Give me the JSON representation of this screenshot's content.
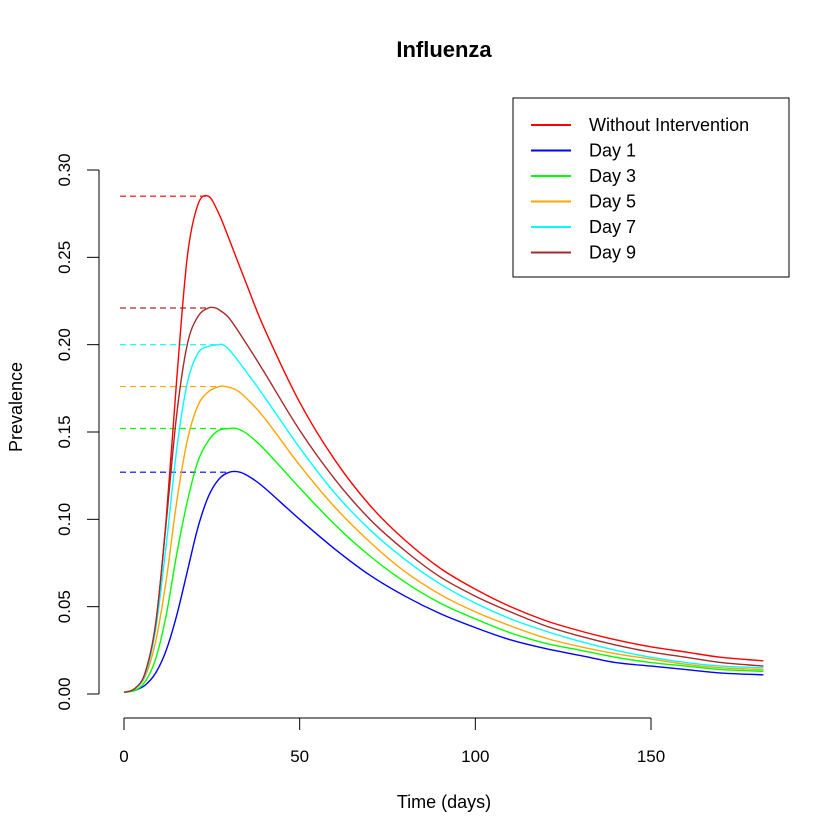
{
  "chart_data": {
    "type": "line",
    "title": "Influenza",
    "xlabel": "Time (days)",
    "ylabel": "Prevalence",
    "xlim": [
      0,
      182
    ],
    "ylim": [
      0,
      0.3
    ],
    "xticks": [
      0,
      50,
      100,
      150
    ],
    "yticks": [
      0.0,
      0.05,
      0.1,
      0.15,
      0.2,
      0.25,
      0.3
    ],
    "xtick_labels": [
      "0",
      "50",
      "100",
      "150"
    ],
    "ytick_labels": [
      "0.00",
      "0.05",
      "0.10",
      "0.15",
      "0.20",
      "0.25",
      "0.30"
    ],
    "grid": false,
    "legend_position": "top-right",
    "series": [
      {
        "name": "Without Intervention",
        "color": "#ff0000",
        "peak_value": 0.285,
        "x": [
          0,
          3,
          6,
          9,
          12,
          15,
          18,
          21,
          24,
          27,
          30,
          35,
          40,
          50,
          60,
          70,
          80,
          90,
          100,
          110,
          120,
          130,
          140,
          150,
          160,
          170,
          182
        ],
        "y": [
          0.001,
          0.003,
          0.012,
          0.04,
          0.1,
          0.18,
          0.25,
          0.28,
          0.285,
          0.275,
          0.26,
          0.234,
          0.209,
          0.167,
          0.134,
          0.108,
          0.088,
          0.072,
          0.06,
          0.05,
          0.042,
          0.036,
          0.031,
          0.027,
          0.024,
          0.021,
          0.019
        ]
      },
      {
        "name": "Day 1",
        "color": "#0000ff",
        "peak_value": 0.127,
        "x": [
          0,
          3,
          6,
          9,
          12,
          15,
          18,
          21,
          24,
          27,
          30,
          33,
          36,
          40,
          50,
          60,
          70,
          80,
          90,
          100,
          110,
          120,
          130,
          140,
          150,
          160,
          170,
          182
        ],
        "y": [
          0.001,
          0.002,
          0.005,
          0.012,
          0.025,
          0.045,
          0.07,
          0.095,
          0.113,
          0.123,
          0.127,
          0.127,
          0.124,
          0.118,
          0.1,
          0.083,
          0.068,
          0.056,
          0.046,
          0.038,
          0.031,
          0.026,
          0.022,
          0.018,
          0.016,
          0.014,
          0.012,
          0.011
        ]
      },
      {
        "name": "Day 3",
        "color": "#00ff00",
        "peak_value": 0.152,
        "x": [
          0,
          3,
          6,
          9,
          12,
          15,
          18,
          21,
          24,
          27,
          30,
          32,
          35,
          40,
          50,
          60,
          70,
          80,
          90,
          100,
          110,
          120,
          130,
          140,
          150,
          160,
          170,
          182
        ],
        "y": [
          0.001,
          0.002,
          0.007,
          0.02,
          0.045,
          0.08,
          0.11,
          0.133,
          0.145,
          0.151,
          0.152,
          0.152,
          0.149,
          0.14,
          0.118,
          0.097,
          0.079,
          0.064,
          0.052,
          0.043,
          0.035,
          0.029,
          0.025,
          0.021,
          0.018,
          0.016,
          0.014,
          0.013
        ]
      },
      {
        "name": "Day 5",
        "color": "#ffa500",
        "peak_value": 0.176,
        "x": [
          0,
          3,
          6,
          9,
          12,
          15,
          18,
          21,
          24,
          27,
          29,
          32,
          35,
          40,
          50,
          60,
          70,
          80,
          90,
          100,
          110,
          120,
          130,
          140,
          150,
          160,
          170,
          182
        ],
        "y": [
          0.001,
          0.003,
          0.01,
          0.03,
          0.065,
          0.11,
          0.145,
          0.165,
          0.173,
          0.176,
          0.176,
          0.174,
          0.169,
          0.158,
          0.131,
          0.107,
          0.087,
          0.07,
          0.057,
          0.047,
          0.039,
          0.032,
          0.027,
          0.023,
          0.02,
          0.017,
          0.015,
          0.014
        ]
      },
      {
        "name": "Day 7",
        "color": "#00ffff",
        "peak_value": 0.2,
        "x": [
          0,
          3,
          6,
          9,
          12,
          15,
          18,
          21,
          24,
          27,
          28,
          30,
          35,
          40,
          50,
          60,
          70,
          80,
          90,
          100,
          110,
          120,
          130,
          140,
          150,
          160,
          170,
          182
        ],
        "y": [
          0.001,
          0.003,
          0.011,
          0.037,
          0.085,
          0.14,
          0.178,
          0.195,
          0.199,
          0.2,
          0.2,
          0.197,
          0.184,
          0.17,
          0.141,
          0.115,
          0.094,
          0.077,
          0.063,
          0.052,
          0.043,
          0.036,
          0.03,
          0.025,
          0.021,
          0.018,
          0.016,
          0.015
        ]
      },
      {
        "name": "Day 9",
        "color": "#a52a2a",
        "peak_value": 0.221,
        "x": [
          0,
          3,
          6,
          9,
          12,
          15,
          18,
          21,
          24,
          26,
          27,
          30,
          35,
          40,
          50,
          60,
          70,
          80,
          90,
          100,
          110,
          120,
          130,
          140,
          150,
          160,
          170,
          182
        ],
        "y": [
          0.001,
          0.003,
          0.012,
          0.04,
          0.098,
          0.16,
          0.2,
          0.216,
          0.221,
          0.221,
          0.22,
          0.215,
          0.2,
          0.184,
          0.151,
          0.123,
          0.1,
          0.082,
          0.067,
          0.056,
          0.047,
          0.039,
          0.033,
          0.028,
          0.024,
          0.021,
          0.018,
          0.016
        ]
      }
    ]
  }
}
